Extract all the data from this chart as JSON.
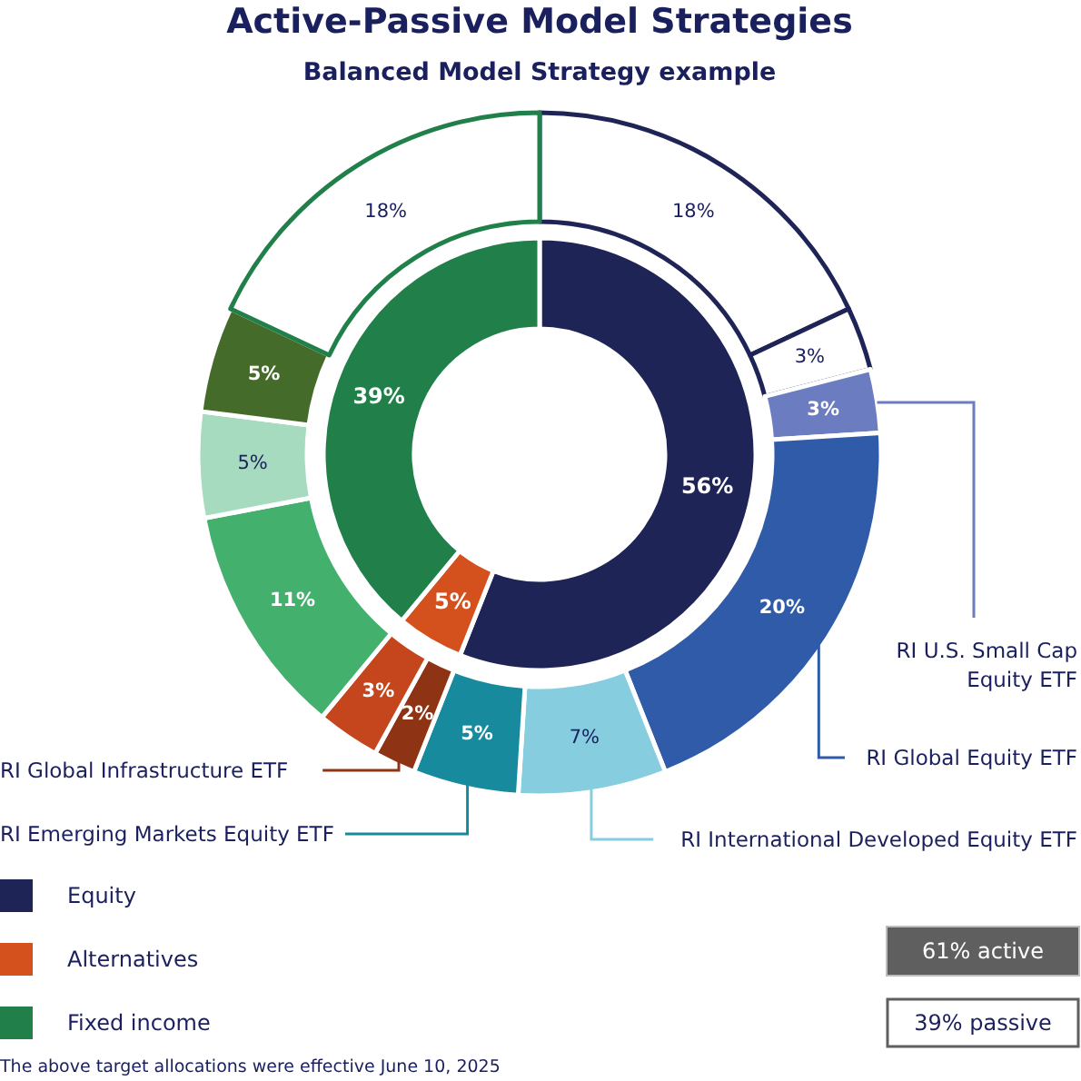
{
  "chart_data": [
    {
      "type": "donut",
      "title": "Active-Passive Model Strategies",
      "subtitle": "Balanced Model Strategy example",
      "legend": "bottom left",
      "categories": [
        "Equity",
        "Alternatives",
        "Fixed income"
      ],
      "values": [
        56,
        5,
        39
      ],
      "colors": [
        "#1f2456",
        "#d4501c",
        "#21804a"
      ],
      "value_labels": [
        "56%",
        "5%",
        "39%"
      ],
      "annotations": [
        "61% active",
        "39% passive",
        "The above target allocations were effective June 10, 2025"
      ]
    },
    {
      "type": "donut",
      "categories": [
        null,
        null,
        "RI U.S. Small Cap Equity ETF",
        "RI Global Equity ETF",
        "RI International Developed Equity ETF",
        "RI Emerging Markets Equity ETF",
        "RI Global Infrastructure ETF",
        null,
        null,
        null,
        null,
        null
      ],
      "values": [
        18,
        3,
        3,
        20,
        7,
        5,
        2,
        3,
        11,
        5,
        5,
        18
      ],
      "colors": [
        "#ffffff",
        "#ffffff",
        "#6b7dc0",
        "#2f5ba8",
        "#86cddf",
        "#178a9e",
        "#8e3415",
        "#c5461d",
        "#44b06e",
        "#a7dbbf",
        "#456b2a",
        "#ffffff"
      ],
      "value_labels": [
        "18%",
        "3%",
        "3%",
        "20%",
        "7%",
        "5%",
        "2%",
        "3%",
        "11%",
        "5%",
        "5%",
        "18%"
      ]
    }
  ]
}
